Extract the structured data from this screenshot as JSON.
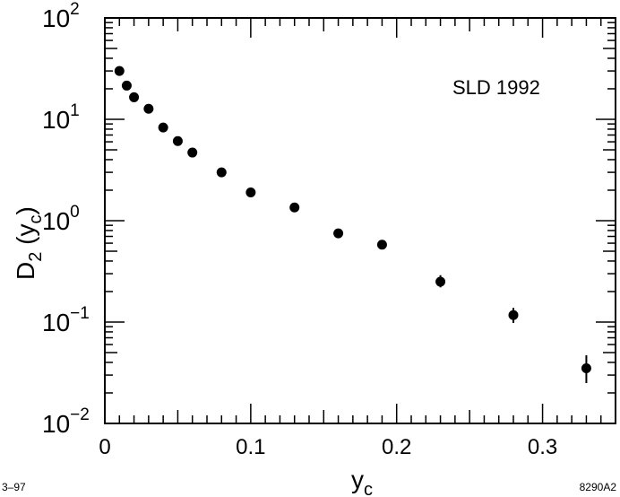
{
  "chart_data": {
    "type": "scatter",
    "annotation": "SLD 1992",
    "xlabel": {
      "base": "y",
      "sub": "c"
    },
    "ylabel": {
      "base": "D",
      "sub1": "2",
      "mid": " (y",
      "sub2": "c",
      "end": ")"
    },
    "xlim": [
      0,
      0.35
    ],
    "ylim": [
      0.01,
      100
    ],
    "yscale": "log",
    "grid": false,
    "x_ticks": [
      {
        "value": 0,
        "label": "0"
      },
      {
        "value": 0.1,
        "label": "0.1"
      },
      {
        "value": 0.2,
        "label": "0.2"
      },
      {
        "value": 0.3,
        "label": "0.3"
      }
    ],
    "y_ticks": [
      {
        "value": 100,
        "base": "10",
        "exp": "2"
      },
      {
        "value": 10,
        "base": "10",
        "exp": "1"
      },
      {
        "value": 1,
        "base": "10",
        "exp": "0"
      },
      {
        "value": 0.1,
        "base": "10",
        "exp": "−1"
      },
      {
        "value": 0.01,
        "base": "10",
        "exp": "−2"
      }
    ],
    "series": [
      {
        "points": [
          {
            "x": 0.01,
            "y": 30,
            "err": [
              0,
              0
            ]
          },
          {
            "x": 0.015,
            "y": 21.5,
            "err": [
              0,
              0
            ]
          },
          {
            "x": 0.02,
            "y": 16.5,
            "err": [
              0,
              0
            ]
          },
          {
            "x": 0.03,
            "y": 12.7,
            "err": [
              0,
              0
            ]
          },
          {
            "x": 0.04,
            "y": 8.3,
            "err": [
              0,
              0
            ]
          },
          {
            "x": 0.05,
            "y": 6.1,
            "err": [
              0,
              0
            ]
          },
          {
            "x": 0.06,
            "y": 4.7,
            "err": [
              0,
              0
            ]
          },
          {
            "x": 0.08,
            "y": 3.0,
            "err": [
              0,
              0
            ]
          },
          {
            "x": 0.1,
            "y": 1.9,
            "err": [
              0,
              0
            ]
          },
          {
            "x": 0.13,
            "y": 1.35,
            "err": [
              0,
              0
            ]
          },
          {
            "x": 0.16,
            "y": 0.75,
            "err": [
              0,
              0
            ]
          },
          {
            "x": 0.19,
            "y": 0.58,
            "err": [
              0,
              0
            ]
          },
          {
            "x": 0.23,
            "y": 0.25,
            "err": [
              0.22,
              0.29
            ]
          },
          {
            "x": 0.28,
            "y": 0.117,
            "err": [
              0.098,
              0.138
            ]
          },
          {
            "x": 0.33,
            "y": 0.035,
            "err": [
              0.025,
              0.047
            ]
          }
        ]
      }
    ]
  },
  "footer": {
    "left": "3–97",
    "right": "8290A2"
  }
}
